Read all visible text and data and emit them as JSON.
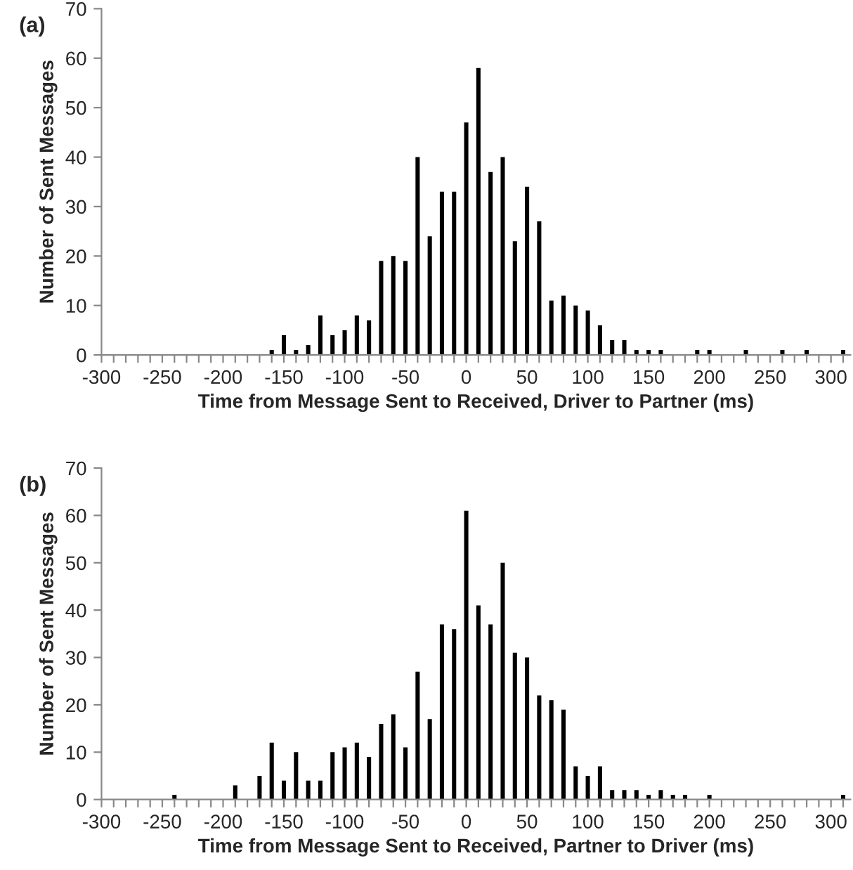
{
  "chart_data": [
    {
      "type": "bar",
      "title": "(a)",
      "xlabel": "Time from Message Sent to Received, Driver to Partner (ms)",
      "ylabel": "Number of Sent Messages",
      "color": "#000000",
      "x": [
        -160,
        -150,
        -140,
        -130,
        -120,
        -110,
        -100,
        -90,
        -80,
        -70,
        -60,
        -50,
        -40,
        -30,
        -20,
        -10,
        0,
        10,
        20,
        30,
        40,
        50,
        60,
        70,
        80,
        90,
        100,
        110,
        120,
        130,
        140,
        150,
        160,
        190,
        200,
        230,
        260,
        280,
        310
      ],
      "values": [
        1,
        4,
        1,
        2,
        8,
        4,
        5,
        8,
        7,
        19,
        20,
        19,
        40,
        24,
        33,
        33,
        47,
        58,
        37,
        40,
        23,
        34,
        27,
        11,
        12,
        10,
        9,
        6,
        3,
        3,
        1,
        1,
        1,
        1,
        1,
        1,
        1,
        1,
        1
      ],
      "xlim": [
        -300,
        316
      ],
      "ylim": [
        0,
        70
      ],
      "yticks": [
        0,
        10,
        20,
        30,
        40,
        50,
        60,
        70
      ],
      "xticks": [
        -300,
        {
          "value": -290,
          "label": null
        },
        {
          "value": -280,
          "label": null
        },
        {
          "value": -270,
          "label": null
        },
        {
          "value": -260,
          "label": null
        },
        -250,
        {
          "value": -240,
          "label": null
        },
        {
          "value": -230,
          "label": null
        },
        {
          "value": -220,
          "label": null
        },
        {
          "value": -210,
          "label": null
        },
        -200,
        {
          "value": -190,
          "label": null
        },
        {
          "value": -180,
          "label": null
        },
        {
          "value": -170,
          "label": null
        },
        {
          "value": -160,
          "label": null
        },
        -150,
        {
          "value": -140,
          "label": null
        },
        {
          "value": -130,
          "label": null
        },
        {
          "value": -120,
          "label": null
        },
        {
          "value": -110,
          "label": null
        },
        -100,
        {
          "value": -90,
          "label": null
        },
        {
          "value": -80,
          "label": null
        },
        {
          "value": -70,
          "label": null
        },
        {
          "value": -60,
          "label": null
        },
        -50,
        {
          "value": -40,
          "label": null
        },
        {
          "value": -30,
          "label": null
        },
        {
          "value": -20,
          "label": null
        },
        {
          "value": -10,
          "label": null
        },
        0,
        {
          "value": 10,
          "label": null
        },
        {
          "value": 20,
          "label": null
        },
        {
          "value": 30,
          "label": null
        },
        {
          "value": 40,
          "label": null
        },
        50,
        {
          "value": 60,
          "label": null
        },
        {
          "value": 70,
          "label": null
        },
        {
          "value": 80,
          "label": null
        },
        {
          "value": 90,
          "label": null
        },
        100,
        {
          "value": 110,
          "label": null
        },
        {
          "value": 120,
          "label": null
        },
        {
          "value": 130,
          "label": null
        },
        {
          "value": 140,
          "label": null
        },
        150,
        {
          "value": 160,
          "label": null
        },
        {
          "value": 170,
          "label": null
        },
        {
          "value": 180,
          "label": null
        },
        {
          "value": 190,
          "label": null
        },
        200,
        {
          "value": 210,
          "label": null
        },
        {
          "value": 220,
          "label": null
        },
        {
          "value": 230,
          "label": null
        },
        {
          "value": 240,
          "label": null
        },
        250,
        {
          "value": 260,
          "label": null
        },
        {
          "value": 270,
          "label": null
        },
        {
          "value": 280,
          "label": null
        },
        {
          "value": 290,
          "label": null
        },
        300,
        {
          "value": 310,
          "label": null
        }
      ],
      "grid": false,
      "legend": false
    },
    {
      "type": "bar",
      "title": "(b)",
      "xlabel": "Time from Message Sent to Received, Partner to Driver (ms)",
      "ylabel": "Number of Sent Messages",
      "color": "#000000",
      "x": [
        -240,
        -190,
        -170,
        -160,
        -150,
        -140,
        -130,
        -120,
        -110,
        -100,
        -90,
        -80,
        -70,
        -60,
        -50,
        -40,
        -30,
        -20,
        -10,
        0,
        10,
        20,
        30,
        40,
        50,
        60,
        70,
        80,
        90,
        100,
        110,
        120,
        130,
        140,
        150,
        160,
        170,
        180,
        200,
        310
      ],
      "values": [
        1,
        3,
        5,
        12,
        4,
        10,
        4,
        4,
        10,
        11,
        12,
        9,
        16,
        18,
        11,
        27,
        17,
        37,
        36,
        61,
        41,
        37,
        50,
        31,
        30,
        22,
        21,
        19,
        7,
        5,
        7,
        2,
        2,
        2,
        1,
        2,
        1,
        1,
        1,
        1
      ],
      "xlim": [
        -300,
        316
      ],
      "ylim": [
        0,
        70
      ],
      "yticks": [
        0,
        10,
        20,
        30,
        40,
        50,
        60,
        70
      ],
      "xticks": [
        -300,
        {
          "value": -290,
          "label": null
        },
        {
          "value": -280,
          "label": null
        },
        {
          "value": -270,
          "label": null
        },
        {
          "value": -260,
          "label": null
        },
        -250,
        {
          "value": -240,
          "label": null
        },
        {
          "value": -230,
          "label": null
        },
        {
          "value": -220,
          "label": null
        },
        {
          "value": -210,
          "label": null
        },
        -200,
        {
          "value": -190,
          "label": null
        },
        {
          "value": -180,
          "label": null
        },
        {
          "value": -170,
          "label": null
        },
        {
          "value": -160,
          "label": null
        },
        -150,
        {
          "value": -140,
          "label": null
        },
        {
          "value": -130,
          "label": null
        },
        {
          "value": -120,
          "label": null
        },
        {
          "value": -110,
          "label": null
        },
        -100,
        {
          "value": -90,
          "label": null
        },
        {
          "value": -80,
          "label": null
        },
        {
          "value": -70,
          "label": null
        },
        {
          "value": -60,
          "label": null
        },
        -50,
        {
          "value": -40,
          "label": null
        },
        {
          "value": -30,
          "label": null
        },
        {
          "value": -20,
          "label": null
        },
        {
          "value": -10,
          "label": null
        },
        0,
        {
          "value": 10,
          "label": null
        },
        {
          "value": 20,
          "label": null
        },
        {
          "value": 30,
          "label": null
        },
        {
          "value": 40,
          "label": null
        },
        50,
        {
          "value": 60,
          "label": null
        },
        {
          "value": 70,
          "label": null
        },
        {
          "value": 80,
          "label": null
        },
        {
          "value": 90,
          "label": null
        },
        100,
        {
          "value": 110,
          "label": null
        },
        {
          "value": 120,
          "label": null
        },
        {
          "value": 130,
          "label": null
        },
        {
          "value": 140,
          "label": null
        },
        150,
        {
          "value": 160,
          "label": null
        },
        {
          "value": 170,
          "label": null
        },
        {
          "value": 180,
          "label": null
        },
        {
          "value": 190,
          "label": null
        },
        200,
        {
          "value": 210,
          "label": null
        },
        {
          "value": 220,
          "label": null
        },
        {
          "value": 230,
          "label": null
        },
        {
          "value": 240,
          "label": null
        },
        250,
        {
          "value": 260,
          "label": null
        },
        {
          "value": 270,
          "label": null
        },
        {
          "value": 280,
          "label": null
        },
        {
          "value": 290,
          "label": null
        },
        300,
        {
          "value": 310,
          "label": null
        }
      ],
      "grid": false,
      "legend": false
    }
  ]
}
